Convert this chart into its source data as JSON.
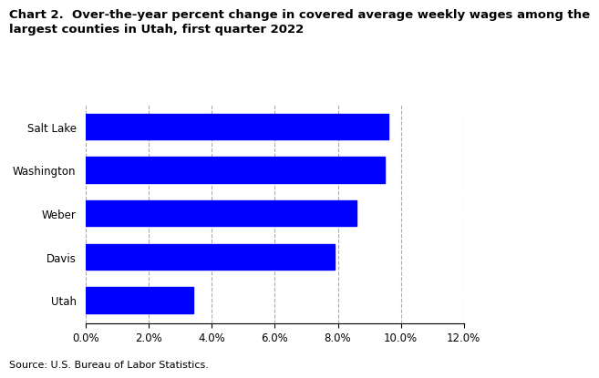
{
  "title_line1": "Chart 2.  Over-the-year percent change in covered average weekly wages among the",
  "title_line2": "largest counties in Utah, first quarter 2022",
  "categories": [
    "Utah",
    "Davis",
    "Weber",
    "Washington",
    "Salt Lake"
  ],
  "values": [
    0.034,
    0.079,
    0.086,
    0.095,
    0.096
  ],
  "bar_color": "#0000FF",
  "xlim": [
    0,
    0.12
  ],
  "xticks": [
    0.0,
    0.02,
    0.04,
    0.06,
    0.08,
    0.1,
    0.12
  ],
  "source": "Source: U.S. Bureau of Labor Statistics.",
  "grid_color": "#aaaaaa",
  "background_color": "#ffffff",
  "title_fontsize": 9.5,
  "tick_fontsize": 8.5,
  "ylabel_fontsize": 8.5,
  "source_fontsize": 8.0
}
